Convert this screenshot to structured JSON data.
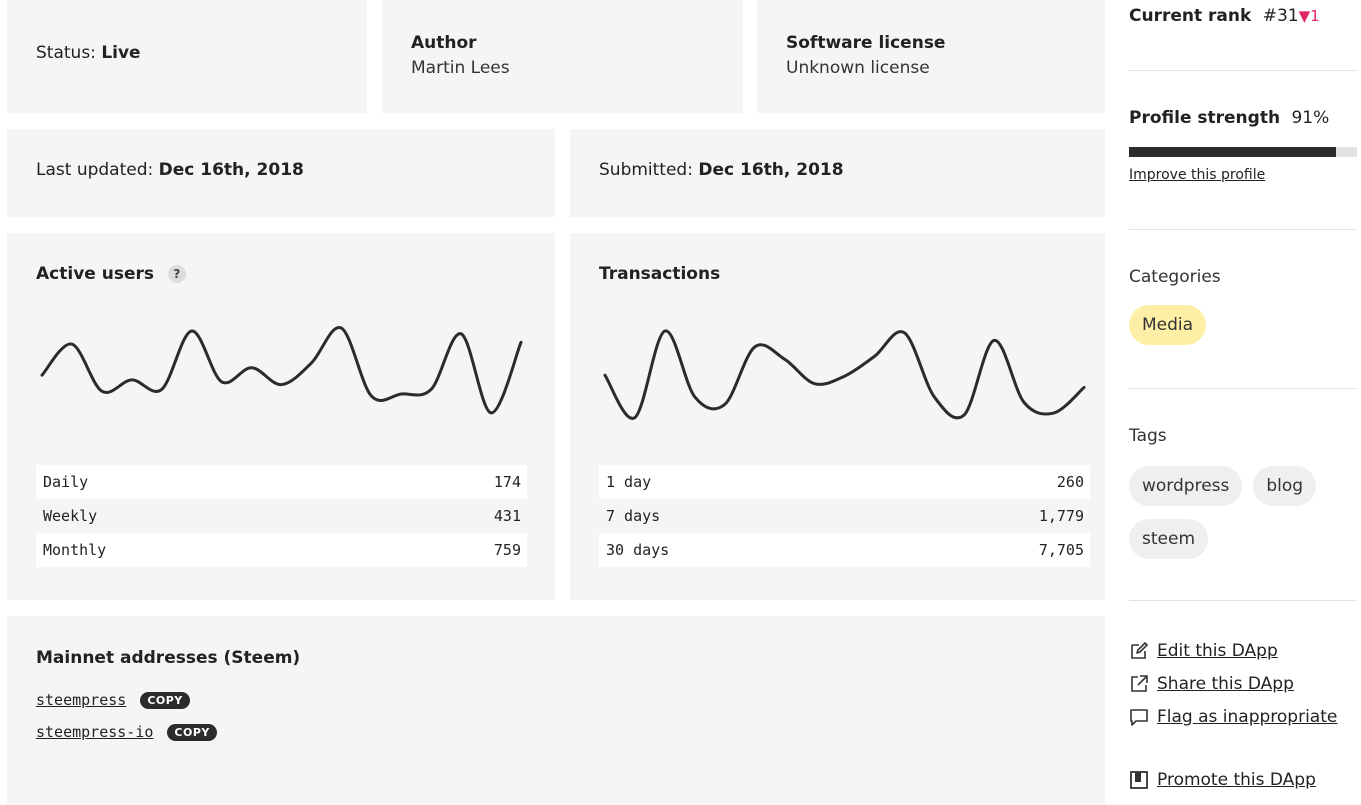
{
  "status": {
    "label": "Status:",
    "value": "Live"
  },
  "author": {
    "label": "Author",
    "value": "Martin Lees"
  },
  "license": {
    "label": "Software license",
    "value": "Unknown license"
  },
  "last_updated": {
    "label": "Last updated:",
    "value": "Dec 16th, 2018"
  },
  "submitted": {
    "label": "Submitted:",
    "value": "Dec 16th, 2018"
  },
  "active_users": {
    "title": "Active users",
    "help": "?",
    "rows": [
      {
        "label": "Daily",
        "value": "174"
      },
      {
        "label": "Weekly",
        "value": "431"
      },
      {
        "label": "Monthly",
        "value": "759"
      }
    ]
  },
  "transactions": {
    "title": "Transactions",
    "rows": [
      {
        "label": "1 day",
        "value": "260"
      },
      {
        "label": "7 days",
        "value": "1,779"
      },
      {
        "label": "30 days",
        "value": "7,705"
      }
    ]
  },
  "chart_data": [
    {
      "type": "line",
      "series": [
        {
          "values": [
            55,
            88,
            38,
            50,
            40,
            102,
            48,
            63,
            45,
            68,
            105,
            33,
            35,
            40,
            99,
            15,
            90
          ]
        }
      ]
    },
    {
      "type": "line",
      "series": [
        {
          "values": [
            55,
            10,
            102,
            32,
            24,
            85,
            72,
            46,
            54,
            75,
            100,
            32,
            13,
            92,
            26,
            15,
            42
          ]
        }
      ]
    }
  ],
  "mainnet": {
    "title": "Mainnet addresses (Steem)",
    "copy_label": "COPY",
    "addresses": [
      "steempress",
      "steempress-io"
    ]
  },
  "sidebar": {
    "rank_label": "Current rank",
    "rank_value": "#31",
    "rank_change": "▼1",
    "strength_label": "Profile strength",
    "strength_value": "91%",
    "strength_fraction": 0.91,
    "improve_label": "Improve this profile",
    "categories_title": "Categories",
    "categories": [
      "Media"
    ],
    "tags_title": "Tags",
    "tags": [
      "wordpress",
      "blog",
      "steem"
    ],
    "actions": {
      "edit": "Edit this DApp",
      "share": "Share this DApp",
      "flag": "Flag as inappropriate",
      "promote": "Promote this DApp"
    }
  }
}
